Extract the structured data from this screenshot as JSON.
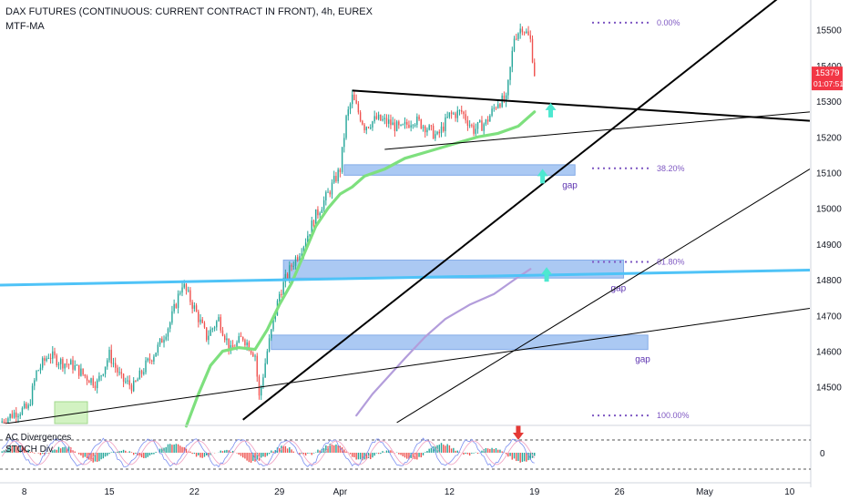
{
  "header": {
    "title": "DAX FUTURES (CONTINUOUS: CURRENT CONTRACT IN FRONT), 4h, EUREX",
    "indicator": "MTF-MA"
  },
  "subpanel": {
    "label1": "AC Divergences",
    "label2": "STOCH Div",
    "zero_label": "0"
  },
  "price_badge": {
    "price": "15379",
    "countdown": "01:07:51",
    "color": "#f23645"
  },
  "colors": {
    "up": "#26a69a",
    "down": "#ef5350",
    "ma_fast": "#7ee07e",
    "ma_slow": "#b39ddb",
    "zone": "#90b8f0",
    "zone_border": "#5a8fe0",
    "cyan_line": "#4fc3f7",
    "arrow": "#4de8d0",
    "fib": "#7e57c2",
    "down_arrow": "#e53935"
  },
  "chart_data": {
    "type": "candlestick",
    "y_ticks": [
      14500,
      14600,
      14700,
      14800,
      14900,
      15000,
      15100,
      15200,
      15300,
      15400,
      15500
    ],
    "ylim": [
      14410,
      15540
    ],
    "x_ticks": [
      {
        "label": "8",
        "t": 12
      },
      {
        "label": "15",
        "t": 54
      },
      {
        "label": "22",
        "t": 96
      },
      {
        "label": "29",
        "t": 138
      },
      {
        "label": "Apr",
        "t": 168
      },
      {
        "label": "12",
        "t": 222
      },
      {
        "label": "19",
        "t": 264
      },
      {
        "label": "26",
        "t": 306
      },
      {
        "label": "May",
        "t": 348
      },
      {
        "label": "10",
        "t": 390
      }
    ],
    "candle_count": 264,
    "price_path": [
      [
        0,
        14400
      ],
      [
        8,
        14430
      ],
      [
        14,
        14440
      ],
      [
        18,
        14540
      ],
      [
        24,
        14590
      ],
      [
        30,
        14570
      ],
      [
        36,
        14560
      ],
      [
        42,
        14530
      ],
      [
        48,
        14510
      ],
      [
        54,
        14590
      ],
      [
        60,
        14520
      ],
      [
        66,
        14500
      ],
      [
        72,
        14560
      ],
      [
        78,
        14610
      ],
      [
        84,
        14680
      ],
      [
        90,
        14790
      ],
      [
        96,
        14720
      ],
      [
        102,
        14640
      ],
      [
        108,
        14690
      ],
      [
        114,
        14600
      ],
      [
        120,
        14640
      ],
      [
        126,
        14590
      ],
      [
        128,
        14470
      ],
      [
        132,
        14600
      ],
      [
        138,
        14760
      ],
      [
        144,
        14840
      ],
      [
        150,
        14900
      ],
      [
        156,
        14980
      ],
      [
        162,
        15040
      ],
      [
        168,
        15110
      ],
      [
        171,
        15250
      ],
      [
        174,
        15310
      ],
      [
        180,
        15230
      ],
      [
        186,
        15250
      ],
      [
        192,
        15240
      ],
      [
        198,
        15220
      ],
      [
        204,
        15250
      ],
      [
        210,
        15230
      ],
      [
        216,
        15200
      ],
      [
        222,
        15260
      ],
      [
        228,
        15270
      ],
      [
        234,
        15220
      ],
      [
        240,
        15240
      ],
      [
        246,
        15300
      ],
      [
        250,
        15300
      ],
      [
        254,
        15480
      ],
      [
        258,
        15510
      ],
      [
        262,
        15470
      ],
      [
        264,
        15379
      ]
    ],
    "ma_fast": [
      [
        92,
        14390
      ],
      [
        98,
        14480
      ],
      [
        104,
        14560
      ],
      [
        110,
        14600
      ],
      [
        118,
        14610
      ],
      [
        126,
        14605
      ],
      [
        132,
        14660
      ],
      [
        138,
        14730
      ],
      [
        144,
        14790
      ],
      [
        150,
        14870
      ],
      [
        156,
        14950
      ],
      [
        162,
        15000
      ],
      [
        168,
        15040
      ],
      [
        174,
        15060
      ],
      [
        180,
        15090
      ],
      [
        190,
        15110
      ],
      [
        200,
        15140
      ],
      [
        212,
        15160
      ],
      [
        224,
        15180
      ],
      [
        236,
        15200
      ],
      [
        246,
        15210
      ],
      [
        256,
        15230
      ],
      [
        264,
        15270
      ]
    ],
    "ma_slow": [
      [
        176,
        14420
      ],
      [
        184,
        14480
      ],
      [
        192,
        14530
      ],
      [
        200,
        14580
      ],
      [
        210,
        14640
      ],
      [
        220,
        14690
      ],
      [
        232,
        14730
      ],
      [
        244,
        14760
      ],
      [
        254,
        14800
      ],
      [
        262,
        14830
      ]
    ],
    "zones": [
      {
        "t0": 170,
        "t1": 284,
        "p_top": 15122,
        "p_bot": 15108,
        "label": "gap"
      },
      {
        "t0": 140,
        "t1": 308,
        "p_top": 14855,
        "p_bot": 14820,
        "label": "gap"
      },
      {
        "t0": 134,
        "t1": 320,
        "p_top": 14645,
        "p_bot": 14620,
        "label": "gap"
      }
    ],
    "fib_levels": [
      {
        "label": "0.00%",
        "price": 15520
      },
      {
        "label": "38.20%",
        "price": 15112
      },
      {
        "label": "61.80%",
        "price": 14850
      },
      {
        "label": "100.00%",
        "price": 14420
      }
    ],
    "trendlines": [
      {
        "name": "horizontal-support",
        "pts": [
          [
            0,
            14785
          ],
          [
            400,
            14827
          ]
        ],
        "color": "#4fc3f7",
        "width": 3
      },
      {
        "name": "steep-up",
        "pts": [
          [
            120,
            14408
          ],
          [
            400,
            15658
          ]
        ],
        "color": "#000000",
        "width": 2
      },
      {
        "name": "down-top",
        "pts": [
          [
            174,
            15330
          ],
          [
            400,
            15245
          ]
        ],
        "color": "#000000",
        "width": 2
      },
      {
        "name": "tri-lower",
        "pts": [
          [
            190,
            15165
          ],
          [
            400,
            15270
          ]
        ],
        "color": "#000000",
        "width": 1
      },
      {
        "name": "long-lower",
        "pts": [
          [
            0,
            14395
          ],
          [
            400,
            14720
          ]
        ],
        "color": "#000000",
        "width": 1
      },
      {
        "name": "mid-up",
        "pts": [
          [
            196,
            14400
          ],
          [
            400,
            15110
          ]
        ],
        "color": "#000000",
        "width": 1
      }
    ],
    "arrows_up": [
      [
        272,
        15275
      ],
      [
        268,
        15090
      ],
      [
        270,
        14815
      ]
    ],
    "arrow_down": [
      256,
      0
    ]
  }
}
